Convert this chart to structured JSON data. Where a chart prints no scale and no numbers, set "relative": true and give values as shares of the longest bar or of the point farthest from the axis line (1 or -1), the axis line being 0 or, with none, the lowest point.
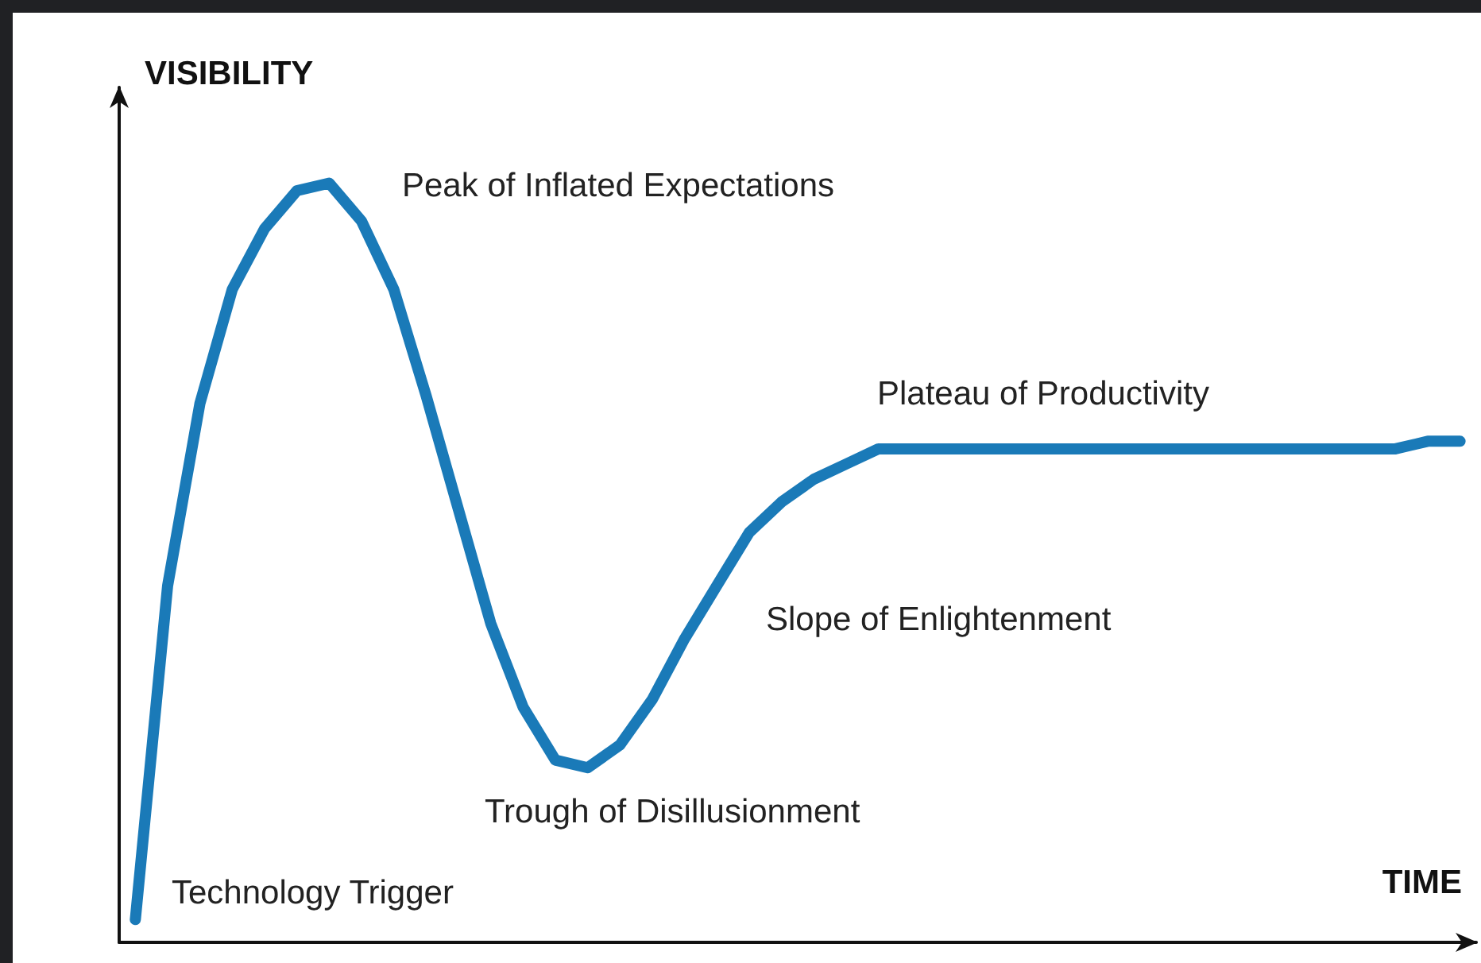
{
  "chart_data": {
    "type": "line",
    "relative": true,
    "xlabel": "TIME",
    "ylabel": "VISIBILITY",
    "marker": "none",
    "line_style": "solid",
    "categories": [
      null,
      null,
      null,
      null,
      null,
      null,
      null,
      null,
      null,
      null,
      null,
      null,
      null,
      null,
      null,
      null,
      null,
      null,
      null,
      null,
      null,
      null,
      null,
      null,
      null,
      null,
      null,
      null,
      null,
      null,
      null,
      null,
      null,
      null,
      null,
      null,
      null,
      null,
      null,
      null,
      null,
      null
    ],
    "series": [
      {
        "color": "#1a7ab8",
        "values": [
          0.03,
          0.47,
          0.71,
          0.86,
          0.94,
          0.99,
          1.0,
          0.95,
          0.86,
          0.72,
          0.57,
          0.42,
          0.31,
          0.24,
          0.23,
          0.26,
          0.32,
          0.4,
          0.47,
          0.54,
          0.58,
          0.61,
          0.63,
          0.65,
          0.65,
          0.65,
          0.65,
          0.65,
          0.65,
          0.65,
          0.65,
          0.65,
          0.65,
          0.65,
          0.65,
          0.65,
          0.65,
          0.65,
          0.65,
          0.65,
          0.66,
          0.66
        ]
      }
    ],
    "annotations": [
      "Technology Trigger",
      "Peak of Inflated Expectations",
      "Trough of Disillusionment",
      "Slope of Enlightenment",
      "Plateau of Productivity"
    ]
  }
}
